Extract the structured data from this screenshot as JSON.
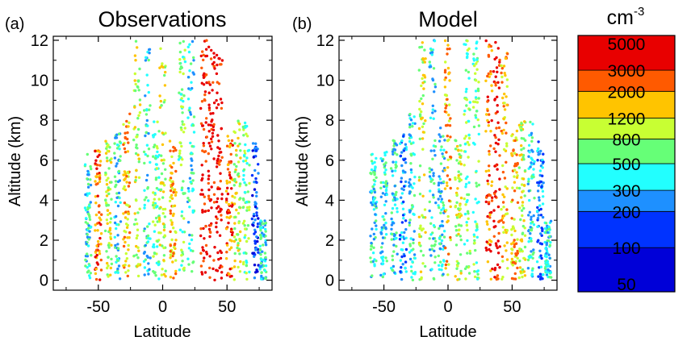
{
  "chart_data": [
    {
      "panel_label": "(a)",
      "type": "scatter",
      "title": "Observations",
      "xlabel": "Latitude",
      "ylabel": "Altitude (km)",
      "xlim": [
        -85,
        85
      ],
      "ylim": [
        -0.5,
        12.2
      ],
      "xticks": [
        -50,
        0,
        50
      ],
      "yticks": [
        0,
        2,
        4,
        6,
        8,
        10,
        12
      ],
      "color_variable": "concentration (cm-3)",
      "profiles": [
        {
          "lat": -58,
          "top": 6.3,
          "level": 400
        },
        {
          "lat": -50,
          "top": 6.5,
          "level": 2000
        },
        {
          "lat": -42,
          "top": 7.0,
          "level": 800
        },
        {
          "lat": -35,
          "top": 7.5,
          "level": 400
        },
        {
          "lat": -28,
          "top": 8.5,
          "level": 1200
        },
        {
          "lat": -20,
          "top": 12.0,
          "level": 800
        },
        {
          "lat": -12,
          "top": 12.0,
          "level": 300
        },
        {
          "lat": -5,
          "top": 8.0,
          "level": 500
        },
        {
          "lat": 0,
          "top": 12.0,
          "level": 800
        },
        {
          "lat": 8,
          "top": 7.0,
          "level": 1200
        },
        {
          "lat": 15,
          "top": 12.0,
          "level": 500
        },
        {
          "lat": 22,
          "top": 12.0,
          "level": 400
        },
        {
          "lat": 32,
          "top": 12.0,
          "level": 3000
        },
        {
          "lat": 38,
          "top": 12.0,
          "level": 5000
        },
        {
          "lat": 44,
          "top": 11.5,
          "level": 4000
        },
        {
          "lat": 52,
          "top": 7.5,
          "level": 2000
        },
        {
          "lat": 58,
          "top": 8.0,
          "level": 800
        },
        {
          "lat": 65,
          "top": 8.0,
          "level": 500
        },
        {
          "lat": 72,
          "top": 7.0,
          "level": 150
        },
        {
          "lat": 78,
          "top": 3.0,
          "level": 300
        }
      ]
    },
    {
      "panel_label": "(b)",
      "type": "scatter",
      "title": "Model",
      "xlabel": "Latitude",
      "ylabel": "Altitude (km)",
      "xlim": [
        -85,
        85
      ],
      "ylim": [
        -0.5,
        12.2
      ],
      "xticks": [
        -50,
        0,
        50
      ],
      "yticks": [
        0,
        2,
        4,
        6,
        8,
        10,
        12
      ],
      "color_variable": "concentration (cm-3)",
      "profiles": [
        {
          "lat": -58,
          "top": 6.3,
          "level": 300
        },
        {
          "lat": -50,
          "top": 6.5,
          "level": 400
        },
        {
          "lat": -42,
          "top": 7.0,
          "level": 300
        },
        {
          "lat": -35,
          "top": 7.5,
          "level": 250
        },
        {
          "lat": -28,
          "top": 8.5,
          "level": 400
        },
        {
          "lat": -20,
          "top": 12.0,
          "level": 800
        },
        {
          "lat": -12,
          "top": 12.0,
          "level": 300
        },
        {
          "lat": -5,
          "top": 8.0,
          "level": 400
        },
        {
          "lat": 0,
          "top": 12.0,
          "level": 1200
        },
        {
          "lat": 8,
          "top": 7.0,
          "level": 800
        },
        {
          "lat": 15,
          "top": 12.0,
          "level": 500
        },
        {
          "lat": 22,
          "top": 12.0,
          "level": 500
        },
        {
          "lat": 32,
          "top": 12.0,
          "level": 2000
        },
        {
          "lat": 38,
          "top": 12.0,
          "level": 3000
        },
        {
          "lat": 44,
          "top": 11.5,
          "level": 1500
        },
        {
          "lat": 52,
          "top": 7.5,
          "level": 1200
        },
        {
          "lat": 58,
          "top": 8.0,
          "level": 800
        },
        {
          "lat": 65,
          "top": 8.0,
          "level": 400
        },
        {
          "lat": 72,
          "top": 7.0,
          "level": 200
        },
        {
          "lat": 78,
          "top": 3.0,
          "level": 300
        }
      ]
    }
  ],
  "colorbar": {
    "unit_base": "cm",
    "unit_exp": "-3",
    "levels": [
      {
        "label": "50",
        "color": "#0000d8"
      },
      {
        "label": "100",
        "color": "#0033ff"
      },
      {
        "label": "200",
        "color": "#1e90ff"
      },
      {
        "label": "300",
        "color": "#22ffff"
      },
      {
        "label": "500",
        "color": "#66ff77"
      },
      {
        "label": "800",
        "color": "#c8ff33"
      },
      {
        "label": "1200",
        "color": "#ffc400"
      },
      {
        "label": "2000",
        "color": "#ff5a00"
      },
      {
        "label": "3000",
        "color": "#e80000"
      },
      {
        "label": "5000",
        "color": "#e80000"
      }
    ],
    "bands": [
      {
        "from": "50",
        "to": "100",
        "color": "#0000d8"
      },
      {
        "from": "100",
        "to": "200",
        "color": "#0033ff"
      },
      {
        "from": "200",
        "to": "300",
        "color": "#1e90ff"
      },
      {
        "from": "300",
        "to": "500",
        "color": "#22ffff"
      },
      {
        "from": "500",
        "to": "800",
        "color": "#66ff77"
      },
      {
        "from": "800",
        "to": "1200",
        "color": "#c8ff33"
      },
      {
        "from": "1200",
        "to": "2000",
        "color": "#ffc400"
      },
      {
        "from": "2000",
        "to": "3000",
        "color": "#ff5a00"
      },
      {
        "from": "3000",
        "to": "5000",
        "color": "#e80000"
      }
    ]
  }
}
